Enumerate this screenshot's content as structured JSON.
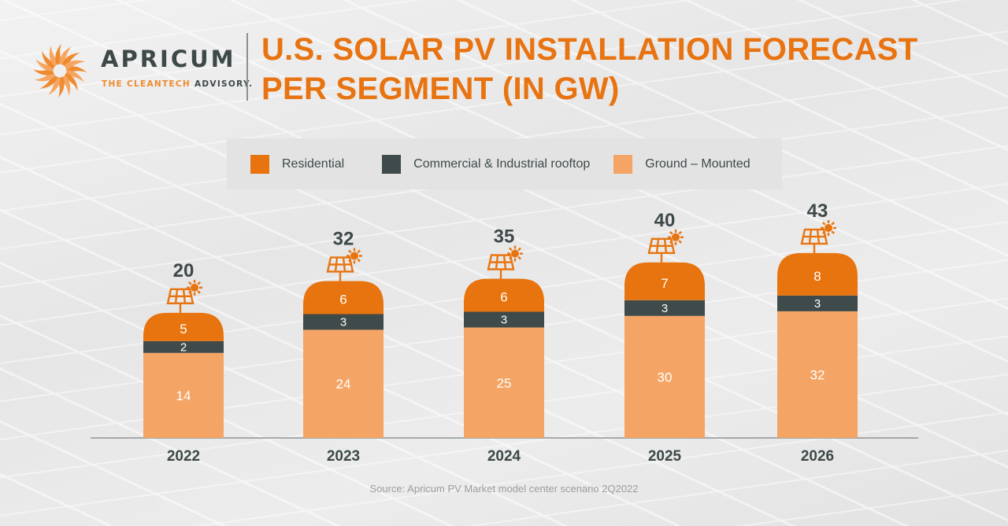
{
  "brand": {
    "name": "APRICUM",
    "tagline_orange": "THE CLEANTECH",
    "tagline_dark": "ADVISORY."
  },
  "title_line1": "U.S. SOLAR PV INSTALLATION FORECAST",
  "title_line2": "PER SEGMENT (IN GW)",
  "source": "Source: Apricum PV Market model center scenario 2Q2022",
  "colors": {
    "residential": "#e8740f",
    "commercial": "#3f4a4a",
    "ground": "#f4a565",
    "title": "#e87311",
    "text": "#3d4848"
  },
  "chart_data": {
    "type": "bar",
    "stacked": true,
    "title": "U.S. SOLAR PV INSTALLATION FORECAST PER SEGMENT (IN GW)",
    "categories": [
      "2022",
      "2023",
      "2024",
      "2025",
      "2026"
    ],
    "series": [
      {
        "name": "Ground – Mounted",
        "values": [
          14,
          24,
          25,
          30,
          32
        ]
      },
      {
        "name": "Commercial & Industrial rooftop",
        "values": [
          2,
          3,
          3,
          3,
          3
        ]
      },
      {
        "name": "Residential",
        "values": [
          5,
          6,
          6,
          7,
          8
        ]
      }
    ],
    "totals": [
      20,
      32,
      35,
      40,
      43
    ],
    "legend": "top",
    "grid": false
  }
}
